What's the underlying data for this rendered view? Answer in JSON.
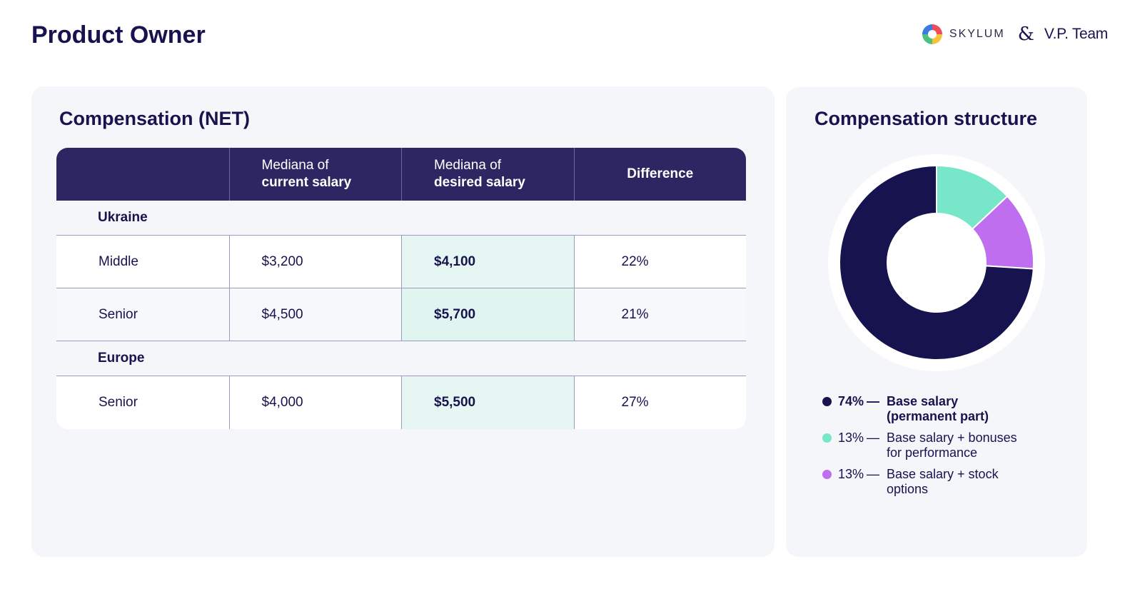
{
  "header": {
    "title": "Product Owner",
    "logo_skylum": "SKYLUM",
    "logo_amp": "&",
    "logo_vp": "V.P. Team"
  },
  "compensation": {
    "title": "Compensation (NET)",
    "columns": {
      "current_prefix": "Mediana of",
      "current_bold": "current salary",
      "desired_prefix": "Mediana of",
      "desired_bold": "desired salary",
      "difference": "Difference"
    },
    "groups": [
      {
        "name": "Ukraine",
        "rows": [
          {
            "level": "Middle",
            "current": "$3,200",
            "desired": "$4,100",
            "difference": "22%"
          },
          {
            "level": "Senior",
            "current": "$4,500",
            "desired": "$5,700",
            "difference": "21%"
          }
        ]
      },
      {
        "name": "Europe",
        "rows": [
          {
            "level": "Senior",
            "current": "$4,000",
            "desired": "$5,500",
            "difference": "27%"
          }
        ]
      }
    ]
  },
  "structure": {
    "title": "Compensation structure"
  },
  "chart_data": {
    "type": "pie",
    "title": "Compensation structure",
    "slices": [
      {
        "label": "Base salary (permanent part)",
        "label_line1": "Base salary",
        "label_line2": "(permanent part)",
        "value": 74,
        "display": "74%",
        "color": "#16134f"
      },
      {
        "label": "Base salary + bonuses for performance",
        "label_line1": "Base salary + bonuses",
        "label_line2": "for performance",
        "value": 13,
        "display": "13%",
        "color": "#78e6c9"
      },
      {
        "label": "Base salary + stock options",
        "label_line1": "Base salary + stock",
        "label_line2": "options",
        "value": 13,
        "display": "13%",
        "color": "#c06ef0"
      }
    ],
    "legend_position": "bottom",
    "donut": true
  },
  "colors": {
    "primary": "#16134f",
    "header_bg": "#2c2762",
    "card_bg": "#f5f6fa",
    "highlight": "#e6f7f3"
  }
}
